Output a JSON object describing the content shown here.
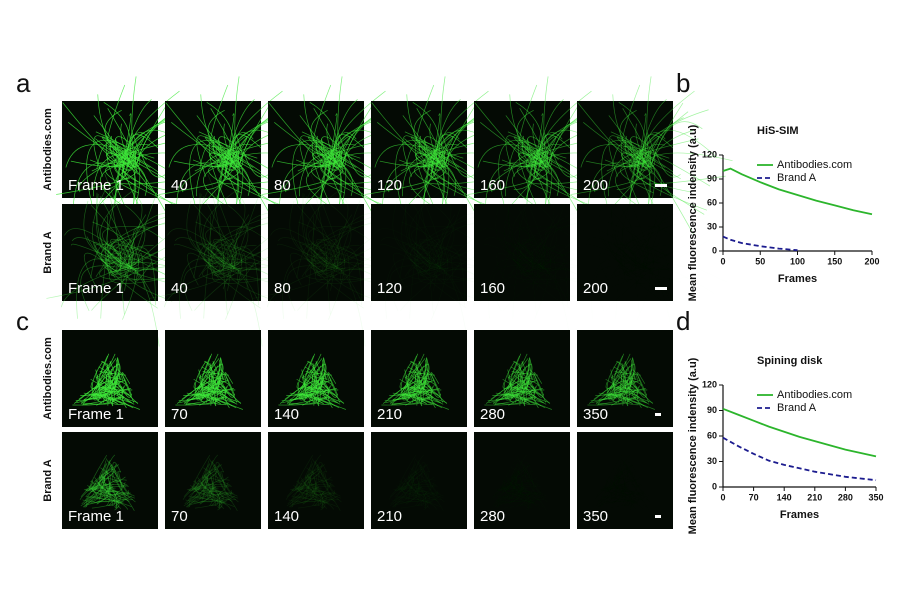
{
  "panels": [
    {
      "letter": "a",
      "rows": [
        {
          "label": "Antibodies.com",
          "frames": [
            "Frame 1",
            "40",
            "80",
            "120",
            "160",
            "200"
          ]
        },
        {
          "label": "Brand A",
          "frames": [
            "Frame 1",
            "40",
            "80",
            "120",
            "160",
            "200"
          ]
        }
      ]
    },
    {
      "letter": "c",
      "rows": [
        {
          "label": "Antibodies.com",
          "frames": [
            "Frame 1",
            "70",
            "140",
            "210",
            "280",
            "350"
          ]
        },
        {
          "label": "Brand A",
          "frames": [
            "Frame 1",
            "70",
            "140",
            "210",
            "280",
            "350"
          ]
        }
      ]
    }
  ],
  "chart_data": [
    {
      "type": "line",
      "panel_label": "b",
      "title": "HiS-SIM",
      "x_label": "Frames",
      "y_label": "Mean fluorescence indensity (a.u)",
      "x": [
        0,
        10,
        25,
        50,
        75,
        100,
        125,
        150,
        175,
        200
      ],
      "series": [
        {
          "name": "Antibodies.com",
          "color": "#2cb52c",
          "line_style": "solid",
          "values": [
            100,
            103,
            96,
            86,
            77,
            70,
            63,
            57,
            51,
            46
          ]
        },
        {
          "name": "Brand A",
          "color": "#1c1c8f",
          "line_style": "dashed",
          "values": [
            18,
            14,
            10,
            6,
            3,
            1,
            null,
            null,
            null,
            null
          ]
        }
      ],
      "xlim": [
        0,
        200
      ],
      "xticks": [
        0,
        50,
        100,
        150,
        200
      ],
      "ylim": [
        0,
        120
      ],
      "yticks": [
        0,
        30,
        60,
        90,
        120
      ]
    },
    {
      "type": "line",
      "panel_label": "d",
      "title": "Spining disk",
      "x_label": "Frames",
      "y_label": "Mean fluorescence indensity (a.u)",
      "x": [
        0,
        35,
        70,
        105,
        140,
        175,
        210,
        245,
        280,
        315,
        350
      ],
      "series": [
        {
          "name": "Antibodies.com",
          "color": "#2cb52c",
          "line_style": "solid",
          "values": [
            92,
            85,
            78,
            71,
            65,
            59,
            54,
            49,
            44,
            40,
            36
          ]
        },
        {
          "name": "Brand A",
          "color": "#1c1c8f",
          "line_style": "dashed",
          "values": [
            58,
            48,
            39,
            31,
            26,
            22,
            18,
            15,
            12,
            10,
            8
          ]
        }
      ],
      "xlim": [
        0,
        350
      ],
      "xticks": [
        0,
        70,
        140,
        210,
        280,
        350
      ],
      "ylim": [
        0,
        120
      ],
      "yticks": [
        0,
        30,
        60,
        90,
        120
      ]
    }
  ]
}
